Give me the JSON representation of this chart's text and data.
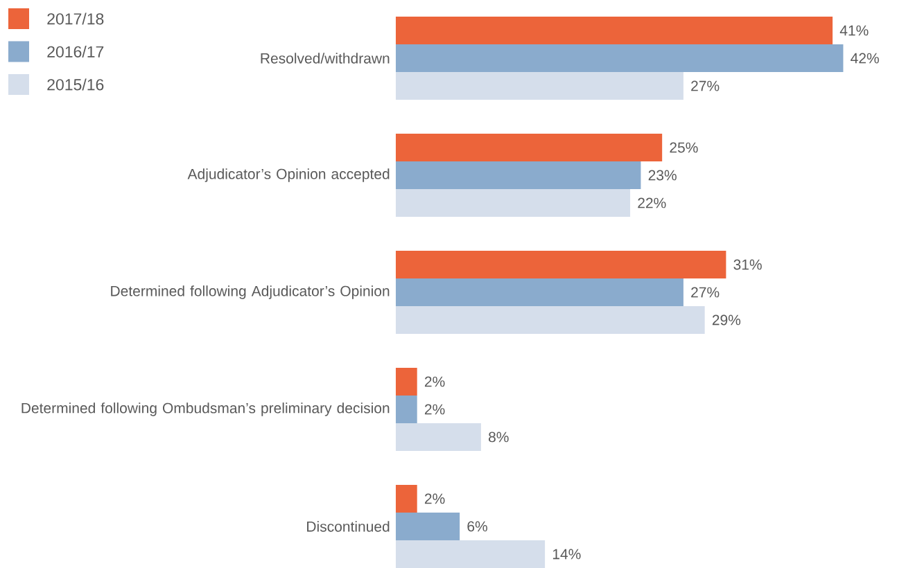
{
  "chart_data": {
    "type": "bar",
    "orientation": "horizontal",
    "legend": "top left",
    "categories": [
      "Resolved/withdrawn",
      "Adjudicator’s Opinion accepted",
      "Determined following Adjudicator’s Opinion",
      "Determined following Ombudsman’s preliminary decision",
      "Discontinued"
    ],
    "series": [
      {
        "name": "2017/18",
        "color": "#ec643a",
        "values": [
          41,
          25,
          31,
          2,
          2
        ],
        "value_labels": [
          "41%",
          "25%",
          "31%",
          "2%",
          "2%"
        ]
      },
      {
        "name": "2016/17",
        "color": "#8aabcd",
        "values": [
          42,
          23,
          27,
          2,
          6
        ],
        "value_labels": [
          "42%",
          "23%",
          "27%",
          "2%",
          "6%"
        ]
      },
      {
        "name": "2015/16",
        "color": "#d5deeb",
        "values": [
          27,
          22,
          29,
          8,
          14
        ],
        "value_labels": [
          "27%",
          "22%",
          "29%",
          "8%",
          "14%"
        ]
      }
    ]
  }
}
